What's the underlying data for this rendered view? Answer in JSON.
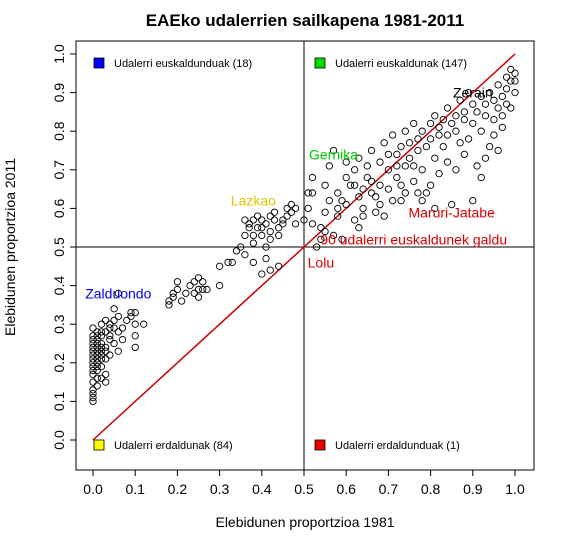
{
  "chart_data": {
    "type": "scatter",
    "title": "EAEko udalerrien sailkapena 1981-2011",
    "xlabel": "Elebidunen proportzioa 1981",
    "ylabel": "Elebidunen proportzioa 2011",
    "xlim": [
      0,
      1
    ],
    "ylim": [
      0,
      1
    ],
    "xticks": [
      "0.0",
      "0.1",
      "0.2",
      "0.3",
      "0.4",
      "0.5",
      "0.6",
      "0.7",
      "0.8",
      "0.9",
      "1.0"
    ],
    "yticks": [
      "0.0",
      "0.1",
      "0.2",
      "0.3",
      "0.4",
      "0.5",
      "0.6",
      "0.7",
      "0.8",
      "0.9",
      "1.0"
    ],
    "grid": false,
    "reference_lines": {
      "diagonal_color": "#cc0000",
      "vertical_x": 0.5,
      "horizontal_y": 0.5
    },
    "quadrant_legends": [
      {
        "label": "Udalerri euskaldunduak (18)",
        "color": "#0000ff",
        "position": "top-left"
      },
      {
        "label": "Udalerri euskaldunak (147)",
        "color": "#00dd00",
        "position": "top-right"
      },
      {
        "label": "Udalerri erdaldunak (84)",
        "color": "#ffff00",
        "position": "bottom-left"
      },
      {
        "label": "Udalerri erdaldunduak (1)",
        "color": "#ee0000",
        "position": "bottom-right"
      }
    ],
    "annotations": [
      {
        "text": "Zerain",
        "x": 0.9,
        "y": 0.9,
        "color": "#000000"
      },
      {
        "text": "Gernika",
        "x": 0.57,
        "y": 0.74,
        "color": "#00cc00"
      },
      {
        "text": "Lazkao",
        "x": 0.38,
        "y": 0.62,
        "color": "#e6c200"
      },
      {
        "text": "Maruri-Jatabe",
        "x": 0.85,
        "y": 0.59,
        "color": "#dd0000"
      },
      {
        "text": "90 udalerri euskaldunek galdu",
        "x": 0.76,
        "y": 0.52,
        "color": "#dd0000"
      },
      {
        "text": "Lolu",
        "x": 0.54,
        "y": 0.46,
        "color": "#dd0000"
      },
      {
        "text": "Zalduondo",
        "x": 0.06,
        "y": 0.38,
        "color": "#0000ff"
      }
    ],
    "series": [
      {
        "points": [
          [
            0.0,
            0.11
          ],
          [
            0.0,
            0.12
          ],
          [
            0.0,
            0.13
          ],
          [
            0.01,
            0.14
          ],
          [
            0.0,
            0.15
          ],
          [
            0.01,
            0.16
          ],
          [
            0.0,
            0.17
          ],
          [
            0.01,
            0.18
          ],
          [
            0.0,
            0.19
          ],
          [
            0.01,
            0.19
          ],
          [
            0.0,
            0.2
          ],
          [
            0.01,
            0.21
          ],
          [
            0.0,
            0.21
          ],
          [
            0.01,
            0.22
          ],
          [
            0.0,
            0.22
          ],
          [
            0.0,
            0.23
          ],
          [
            0.01,
            0.23
          ],
          [
            0.0,
            0.24
          ],
          [
            0.01,
            0.24
          ],
          [
            0.0,
            0.25
          ],
          [
            0.01,
            0.25
          ],
          [
            0.0,
            0.26
          ],
          [
            0.01,
            0.27
          ],
          [
            0.0,
            0.27
          ],
          [
            0.02,
            0.22
          ],
          [
            0.02,
            0.23
          ],
          [
            0.02,
            0.24
          ],
          [
            0.01,
            0.26
          ],
          [
            0.0,
            0.18
          ],
          [
            0.02,
            0.21
          ],
          [
            0.0,
            0.1
          ],
          [
            0.01,
            0.2
          ],
          [
            0.02,
            0.25
          ],
          [
            0.01,
            0.28
          ],
          [
            0.0,
            0.29
          ],
          [
            0.02,
            0.19
          ],
          [
            0.03,
            0.17
          ],
          [
            0.02,
            0.16
          ],
          [
            0.03,
            0.23
          ],
          [
            0.02,
            0.27
          ],
          [
            0.03,
            0.24
          ],
          [
            0.02,
            0.3
          ],
          [
            0.03,
            0.31
          ],
          [
            0.03,
            0.28
          ],
          [
            0.04,
            0.3
          ],
          [
            0.04,
            0.26
          ],
          [
            0.04,
            0.22
          ],
          [
            0.03,
            0.15
          ],
          [
            0.04,
            0.29
          ],
          [
            0.05,
            0.25
          ],
          [
            0.05,
            0.34
          ],
          [
            0.06,
            0.28
          ],
          [
            0.06,
            0.32
          ],
          [
            0.05,
            0.31
          ],
          [
            0.06,
            0.23
          ],
          [
            0.07,
            0.29
          ],
          [
            0.07,
            0.26
          ],
          [
            0.06,
            0.38
          ],
          [
            0.08,
            0.31
          ],
          [
            0.09,
            0.33
          ],
          [
            0.09,
            0.32
          ],
          [
            0.1,
            0.33
          ],
          [
            0.1,
            0.3
          ],
          [
            0.1,
            0.27
          ],
          [
            0.1,
            0.24
          ],
          [
            0.12,
            0.3
          ],
          [
            0.03,
            0.21
          ],
          [
            0.04,
            0.27
          ],
          [
            0.02,
            0.28
          ],
          [
            0.05,
            0.29
          ],
          [
            0.18,
            0.35
          ],
          [
            0.18,
            0.36
          ],
          [
            0.19,
            0.37
          ],
          [
            0.19,
            0.38
          ],
          [
            0.2,
            0.39
          ],
          [
            0.2,
            0.41
          ],
          [
            0.21,
            0.36
          ],
          [
            0.22,
            0.38
          ],
          [
            0.23,
            0.4
          ],
          [
            0.24,
            0.38
          ],
          [
            0.24,
            0.41
          ],
          [
            0.25,
            0.42
          ],
          [
            0.25,
            0.37
          ],
          [
            0.26,
            0.39
          ],
          [
            0.26,
            0.41
          ],
          [
            0.27,
            0.39
          ],
          [
            0.25,
            0.39
          ],
          [
            0.3,
            0.4
          ],
          [
            0.3,
            0.45
          ],
          [
            0.32,
            0.46
          ],
          [
            0.33,
            0.46
          ],
          [
            0.34,
            0.49
          ],
          [
            0.35,
            0.5
          ],
          [
            0.36,
            0.53
          ],
          [
            0.36,
            0.57
          ],
          [
            0.37,
            0.55
          ],
          [
            0.37,
            0.56
          ],
          [
            0.38,
            0.51
          ],
          [
            0.38,
            0.53
          ],
          [
            0.38,
            0.57
          ],
          [
            0.39,
            0.55
          ],
          [
            0.39,
            0.58
          ],
          [
            0.4,
            0.53
          ],
          [
            0.4,
            0.55
          ],
          [
            0.4,
            0.57
          ],
          [
            0.41,
            0.5
          ],
          [
            0.41,
            0.56
          ],
          [
            0.42,
            0.58
          ],
          [
            0.42,
            0.52
          ],
          [
            0.42,
            0.54
          ],
          [
            0.43,
            0.57
          ],
          [
            0.43,
            0.59
          ],
          [
            0.44,
            0.53
          ],
          [
            0.44,
            0.55
          ],
          [
            0.45,
            0.56
          ],
          [
            0.45,
            0.57
          ],
          [
            0.46,
            0.58
          ],
          [
            0.46,
            0.6
          ],
          [
            0.47,
            0.59
          ],
          [
            0.47,
            0.61
          ],
          [
            0.48,
            0.56
          ],
          [
            0.48,
            0.6
          ],
          [
            0.42,
            0.44
          ],
          [
            0.4,
            0.43
          ],
          [
            0.38,
            0.46
          ],
          [
            0.44,
            0.45
          ],
          [
            0.36,
            0.48
          ],
          [
            0.41,
            0.47
          ],
          [
            0.5,
            0.57
          ],
          [
            0.51,
            0.6
          ],
          [
            0.51,
            0.64
          ],
          [
            0.52,
            0.56
          ],
          [
            0.52,
            0.68
          ],
          [
            0.53,
            0.5
          ],
          [
            0.54,
            0.55
          ],
          [
            0.55,
            0.59
          ],
          [
            0.55,
            0.66
          ],
          [
            0.56,
            0.71
          ],
          [
            0.57,
            0.53
          ],
          [
            0.57,
            0.75
          ],
          [
            0.58,
            0.58
          ],
          [
            0.58,
            0.6
          ],
          [
            0.59,
            0.62
          ],
          [
            0.6,
            0.68
          ],
          [
            0.6,
            0.72
          ],
          [
            0.61,
            0.66
          ],
          [
            0.62,
            0.57
          ],
          [
            0.62,
            0.7
          ],
          [
            0.63,
            0.63
          ],
          [
            0.63,
            0.73
          ],
          [
            0.64,
            0.6
          ],
          [
            0.64,
            0.65
          ],
          [
            0.65,
            0.68
          ],
          [
            0.65,
            0.71
          ],
          [
            0.66,
            0.75
          ],
          [
            0.67,
            0.59
          ],
          [
            0.67,
            0.63
          ],
          [
            0.68,
            0.66
          ],
          [
            0.68,
            0.72
          ],
          [
            0.69,
            0.77
          ],
          [
            0.7,
            0.7
          ],
          [
            0.7,
            0.74
          ],
          [
            0.71,
            0.62
          ],
          [
            0.71,
            0.79
          ],
          [
            0.72,
            0.68
          ],
          [
            0.72,
            0.74
          ],
          [
            0.73,
            0.66
          ],
          [
            0.73,
            0.76
          ],
          [
            0.74,
            0.71
          ],
          [
            0.74,
            0.8
          ],
          [
            0.75,
            0.73
          ],
          [
            0.75,
            0.77
          ],
          [
            0.76,
            0.67
          ],
          [
            0.76,
            0.82
          ],
          [
            0.77,
            0.75
          ],
          [
            0.77,
            0.78
          ],
          [
            0.78,
            0.7
          ],
          [
            0.78,
            0.8
          ],
          [
            0.79,
            0.64
          ],
          [
            0.79,
            0.76
          ],
          [
            0.8,
            0.78
          ],
          [
            0.8,
            0.82
          ],
          [
            0.81,
            0.73
          ],
          [
            0.81,
            0.84
          ],
          [
            0.82,
            0.79
          ],
          [
            0.82,
            0.81
          ],
          [
            0.83,
            0.83
          ],
          [
            0.83,
            0.76
          ],
          [
            0.84,
            0.86
          ],
          [
            0.84,
            0.79
          ],
          [
            0.85,
            0.82
          ],
          [
            0.85,
            0.61
          ],
          [
            0.86,
            0.8
          ],
          [
            0.86,
            0.84
          ],
          [
            0.87,
            0.88
          ],
          [
            0.87,
            0.77
          ],
          [
            0.88,
            0.83
          ],
          [
            0.88,
            0.85
          ],
          [
            0.89,
            0.9
          ],
          [
            0.89,
            0.78
          ],
          [
            0.9,
            0.82
          ],
          [
            0.9,
            0.87
          ],
          [
            0.91,
            0.71
          ],
          [
            0.91,
            0.85
          ],
          [
            0.92,
            0.89
          ],
          [
            0.92,
            0.8
          ],
          [
            0.93,
            0.84
          ],
          [
            0.93,
            0.87
          ],
          [
            0.94,
            0.9
          ],
          [
            0.94,
            0.76
          ],
          [
            0.95,
            0.83
          ],
          [
            0.95,
            0.88
          ],
          [
            0.96,
            0.86
          ],
          [
            0.96,
            0.92
          ],
          [
            0.97,
            0.89
          ],
          [
            0.97,
            0.84
          ],
          [
            0.98,
            0.91
          ],
          [
            0.98,
            0.87
          ],
          [
            0.99,
            0.93
          ],
          [
            0.99,
            0.86
          ],
          [
            1.0,
            0.95
          ],
          [
            1.0,
            0.9
          ],
          [
            1.0,
            0.93
          ],
          [
            0.99,
            0.96
          ],
          [
            0.98,
            0.94
          ],
          [
            0.97,
            0.81
          ],
          [
            0.96,
            0.75
          ],
          [
            0.95,
            0.79
          ],
          [
            0.93,
            0.73
          ],
          [
            0.92,
            0.68
          ],
          [
            0.9,
            0.62
          ],
          [
            0.88,
            0.74
          ],
          [
            0.86,
            0.7
          ],
          [
            0.84,
            0.72
          ],
          [
            0.82,
            0.69
          ],
          [
            0.8,
            0.66
          ],
          [
            0.78,
            0.62
          ],
          [
            0.76,
            0.71
          ],
          [
            0.74,
            0.64
          ],
          [
            0.72,
            0.71
          ],
          [
            0.7,
            0.65
          ],
          [
            0.68,
            0.61
          ],
          [
            0.66,
            0.64
          ],
          [
            0.64,
            0.58
          ],
          [
            0.62,
            0.66
          ],
          [
            0.6,
            0.61
          ],
          [
            0.58,
            0.64
          ],
          [
            0.56,
            0.62
          ],
          [
            0.54,
            0.52
          ],
          [
            0.52,
            0.64
          ],
          [
            0.55,
            0.54
          ],
          [
            0.59,
            0.52
          ],
          [
            0.63,
            0.55
          ],
          [
            0.66,
            0.67
          ],
          [
            0.69,
            0.58
          ],
          [
            0.73,
            0.62
          ],
          [
            0.77,
            0.64
          ],
          [
            0.81,
            0.6
          ]
        ]
      }
    ]
  }
}
